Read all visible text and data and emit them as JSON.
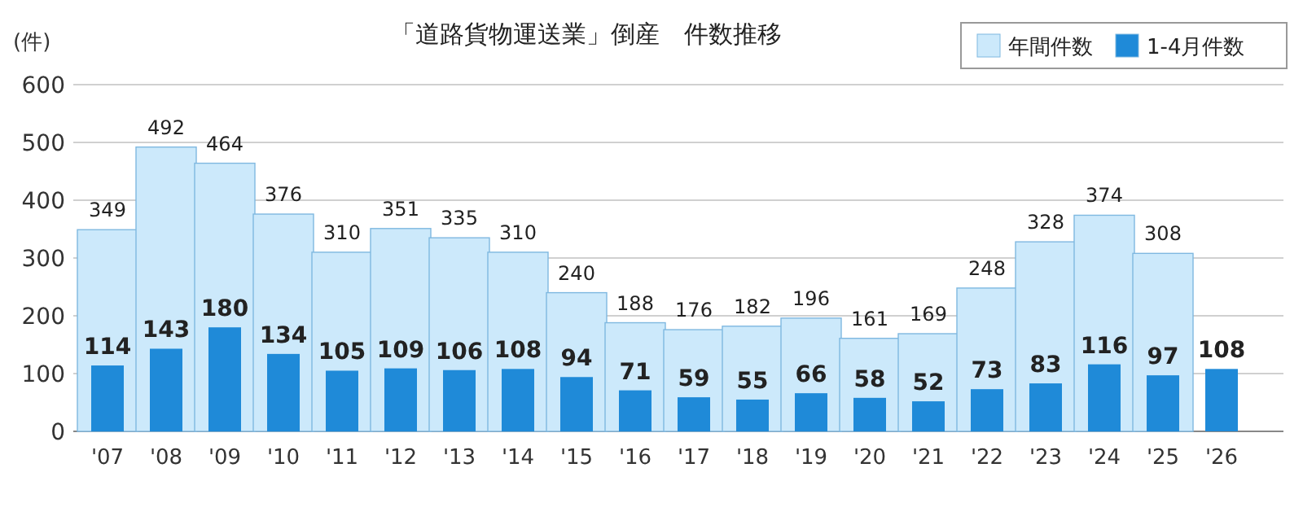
{
  "chart_data": {
    "type": "bar",
    "title": "「道路貨物運送業」倒産　件数推移",
    "ylabel": "(件)",
    "categories": [
      "'07",
      "'08",
      "'09",
      "'10",
      "'11",
      "'12",
      "'13",
      "'14",
      "'15",
      "'16",
      "'17",
      "'18",
      "'19",
      "'20",
      "'21",
      "'22",
      "'23",
      "'24",
      "'25",
      "'26"
    ],
    "series": [
      {
        "name": "年間件数",
        "color": "#cce9fb",
        "values": [
          349,
          492,
          464,
          376,
          310,
          351,
          335,
          310,
          240,
          188,
          176,
          182,
          196,
          161,
          169,
          248,
          328,
          374,
          308,
          null
        ]
      },
      {
        "name": "1-4月件数",
        "color": "#1f8ad8",
        "values": [
          114,
          143,
          180,
          134,
          105,
          109,
          106,
          108,
          94,
          71,
          59,
          55,
          66,
          58,
          52,
          73,
          83,
          116,
          97,
          108
        ]
      }
    ],
    "ylim": [
      0,
      600
    ],
    "yticks": [
      0,
      100,
      200,
      300,
      400,
      500,
      600
    ],
    "grid": "y",
    "legend": "top right",
    "data_labels": true
  }
}
